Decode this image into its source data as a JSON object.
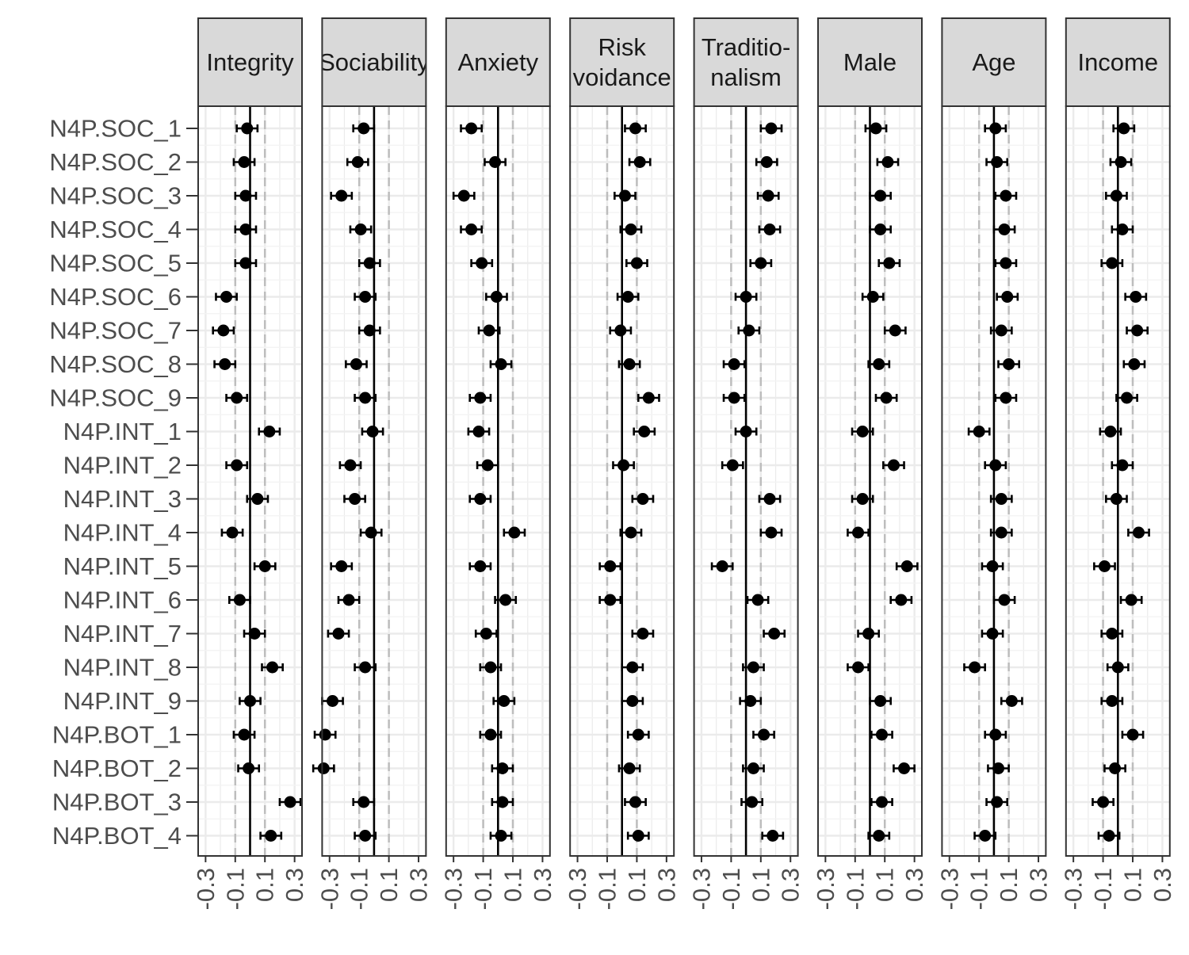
{
  "chart_data": {
    "type": "scatter",
    "subtype": "faceted coefficient plot with error bars",
    "rows": [
      "N4P.SOC_1",
      "N4P.SOC_2",
      "N4P.SOC_3",
      "N4P.SOC_4",
      "N4P.SOC_5",
      "N4P.SOC_6",
      "N4P.SOC_7",
      "N4P.SOC_8",
      "N4P.SOC_9",
      "N4P.INT_1",
      "N4P.INT_2",
      "N4P.INT_3",
      "N4P.INT_4",
      "N4P.INT_5",
      "N4P.INT_6",
      "N4P.INT_7",
      "N4P.INT_8",
      "N4P.INT_9",
      "N4P.BOT_1",
      "N4P.BOT_2",
      "N4P.BOT_3",
      "N4P.BOT_4"
    ],
    "xticks": [
      "-0.3",
      "-0.1",
      "0.1",
      "0.3"
    ],
    "xtick_values": [
      -0.3,
      -0.1,
      0.1,
      0.3
    ],
    "xlim": [
      -0.35,
      0.35
    ],
    "error_halfwidth": 0.07,
    "reference_lines": {
      "solid": 0,
      "dashed": [
        -0.1,
        0.1
      ]
    },
    "grid": true,
    "facets": [
      {
        "label_lines": [
          "Integrity"
        ],
        "values": [
          -0.02,
          -0.04,
          -0.03,
          -0.03,
          -0.03,
          -0.16,
          -0.18,
          -0.17,
          -0.09,
          0.13,
          -0.09,
          0.05,
          -0.12,
          0.1,
          -0.07,
          0.03,
          0.15,
          0.0,
          -0.04,
          -0.01,
          0.27,
          0.14
        ]
      },
      {
        "label_lines": [
          "Sociability"
        ],
        "values": [
          -0.07,
          -0.11,
          -0.22,
          -0.09,
          -0.03,
          -0.06,
          -0.03,
          -0.12,
          -0.06,
          -0.01,
          -0.16,
          -0.13,
          -0.02,
          -0.22,
          -0.17,
          -0.24,
          -0.06,
          -0.28,
          -0.33,
          -0.34,
          -0.07,
          -0.06
        ]
      },
      {
        "label_lines": [
          "Anxiety"
        ],
        "values": [
          -0.18,
          -0.02,
          -0.23,
          -0.18,
          -0.11,
          -0.01,
          -0.06,
          0.02,
          -0.12,
          -0.13,
          -0.07,
          -0.12,
          0.11,
          -0.12,
          0.05,
          -0.08,
          -0.05,
          0.04,
          -0.05,
          0.03,
          0.03,
          0.02
        ]
      },
      {
        "label_lines": [
          "Risk",
          "voidance"
        ],
        "values": [
          0.09,
          0.12,
          0.02,
          0.06,
          0.1,
          0.04,
          -0.01,
          0.05,
          0.18,
          0.15,
          0.01,
          0.14,
          0.06,
          -0.08,
          -0.08,
          0.14,
          0.07,
          0.07,
          0.11,
          0.05,
          0.09,
          0.11
        ]
      },
      {
        "label_lines": [
          "Traditio-",
          "nalism"
        ],
        "values": [
          0.17,
          0.14,
          0.15,
          0.16,
          0.1,
          0.0,
          0.02,
          -0.08,
          -0.08,
          0.0,
          -0.09,
          0.16,
          0.17,
          -0.16,
          0.08,
          0.19,
          0.05,
          0.03,
          0.12,
          0.05,
          0.04,
          0.18
        ]
      },
      {
        "label_lines": [
          "Male"
        ],
        "values": [
          0.04,
          0.12,
          0.07,
          0.07,
          0.13,
          0.02,
          0.17,
          0.06,
          0.11,
          -0.05,
          0.16,
          -0.05,
          -0.08,
          0.25,
          0.21,
          -0.01,
          -0.08,
          0.07,
          0.08,
          0.23,
          0.08,
          0.06
        ]
      },
      {
        "label_lines": [
          "Age"
        ],
        "values": [
          0.01,
          0.02,
          0.08,
          0.07,
          0.08,
          0.09,
          0.05,
          0.1,
          0.08,
          -0.1,
          0.01,
          0.05,
          0.05,
          -0.01,
          0.07,
          -0.01,
          -0.13,
          0.12,
          0.01,
          0.03,
          0.02,
          -0.06
        ]
      },
      {
        "label_lines": [
          "Income"
        ],
        "values": [
          0.04,
          0.02,
          -0.01,
          0.03,
          -0.04,
          0.12,
          0.13,
          0.11,
          0.06,
          -0.05,
          0.03,
          -0.01,
          0.14,
          -0.09,
          0.09,
          -0.04,
          0.0,
          -0.04,
          0.1,
          -0.02,
          -0.1,
          -0.06
        ]
      }
    ]
  }
}
